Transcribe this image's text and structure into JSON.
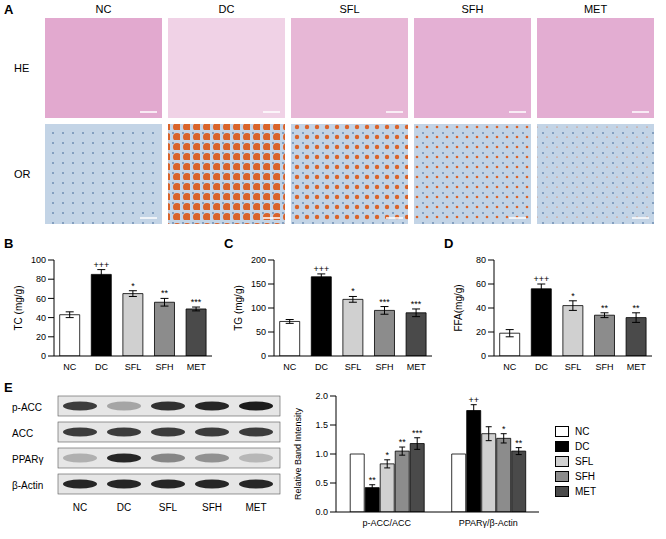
{
  "figure": {
    "panel_labels": [
      "A",
      "B",
      "C",
      "D",
      "E"
    ],
    "histology": {
      "groups": [
        "NC",
        "DC",
        "SFL",
        "SFH",
        "MET"
      ],
      "rows": [
        "HE",
        "OR"
      ]
    },
    "blot": {
      "rows": [
        "p-ACC",
        "ACC",
        "PPARγ",
        "β-Actin"
      ],
      "lanes": [
        "NC",
        "DC",
        "SFL",
        "SFH",
        "MET"
      ]
    }
  },
  "chart_data": [
    {
      "type": "bar",
      "y_label": "TC (mg/g)",
      "categories": [
        "NC",
        "DC",
        "SFL",
        "SFH",
        "MET"
      ],
      "values": [
        43,
        85,
        65,
        56,
        49
      ],
      "errors": [
        3,
        5,
        3,
        4,
        2
      ],
      "significance": [
        null,
        "+++",
        "*",
        "**",
        "***"
      ],
      "colors": [
        "#ffffff",
        "#000000",
        "#d0d0d0",
        "#8c8c8c",
        "#4a4a4a"
      ],
      "ylim": [
        0,
        100
      ],
      "yticks": [
        0,
        20,
        40,
        60,
        80,
        100
      ]
    },
    {
      "type": "bar",
      "y_label": "TG (mg/g)",
      "categories": [
        "NC",
        "DC",
        "SFL",
        "SFH",
        "MET"
      ],
      "values": [
        72,
        165,
        118,
        95,
        90
      ],
      "errors": [
        4,
        6,
        6,
        8,
        8
      ],
      "significance": [
        null,
        "+++",
        "*",
        "***",
        "***"
      ],
      "colors": [
        "#ffffff",
        "#000000",
        "#d0d0d0",
        "#8c8c8c",
        "#4a4a4a"
      ],
      "ylim": [
        0,
        200
      ],
      "yticks": [
        0,
        50,
        100,
        150,
        200
      ]
    },
    {
      "type": "bar",
      "y_label": "FFA(mg/g)",
      "categories": [
        "NC",
        "DC",
        "SFL",
        "SFH",
        "MET"
      ],
      "values": [
        19,
        56,
        42,
        34,
        32
      ],
      "errors": [
        3,
        4,
        4,
        2,
        4
      ],
      "significance": [
        null,
        "+++",
        "*",
        "**",
        "**"
      ],
      "colors": [
        "#ffffff",
        "#000000",
        "#d0d0d0",
        "#8c8c8c",
        "#4a4a4a"
      ],
      "ylim": [
        0,
        80
      ],
      "yticks": [
        0,
        20,
        40,
        60,
        80
      ]
    },
    {
      "type": "bar",
      "y_label": "Relative Band Intensity",
      "categories": [
        "p-ACC/ACC",
        "PPARγ/β-Actin"
      ],
      "series": [
        {
          "name": "NC",
          "color": "#ffffff",
          "values": [
            1,
            1
          ],
          "errors": [
            0,
            0
          ],
          "significance": [
            null,
            null
          ]
        },
        {
          "name": "DC",
          "color": "#000000",
          "values": [
            0.42,
            1.75
          ],
          "errors": [
            0.05,
            0.1
          ],
          "significance": [
            "**",
            "++"
          ]
        },
        {
          "name": "SFL",
          "color": "#d0d0d0",
          "values": [
            0.83,
            1.35
          ],
          "errors": [
            0.07,
            0.12
          ],
          "significance": [
            "*",
            null
          ]
        },
        {
          "name": "SFH",
          "color": "#8c8c8c",
          "values": [
            1.05,
            1.27
          ],
          "errors": [
            0.07,
            0.08
          ],
          "significance": [
            "**",
            "*"
          ]
        },
        {
          "name": "MET",
          "color": "#4a4a4a",
          "values": [
            1.18,
            1.05
          ],
          "errors": [
            0.1,
            0.06
          ],
          "significance": [
            "***",
            "**"
          ]
        }
      ],
      "ylim": [
        0,
        2
      ],
      "yticks": [
        {
          "value": 0,
          "label": "0.0"
        },
        0.5,
        {
          "value": 1,
          "label": "1.0"
        },
        1.5,
        {
          "value": 2,
          "label": "2.0"
        }
      ],
      "legend": "right"
    }
  ]
}
